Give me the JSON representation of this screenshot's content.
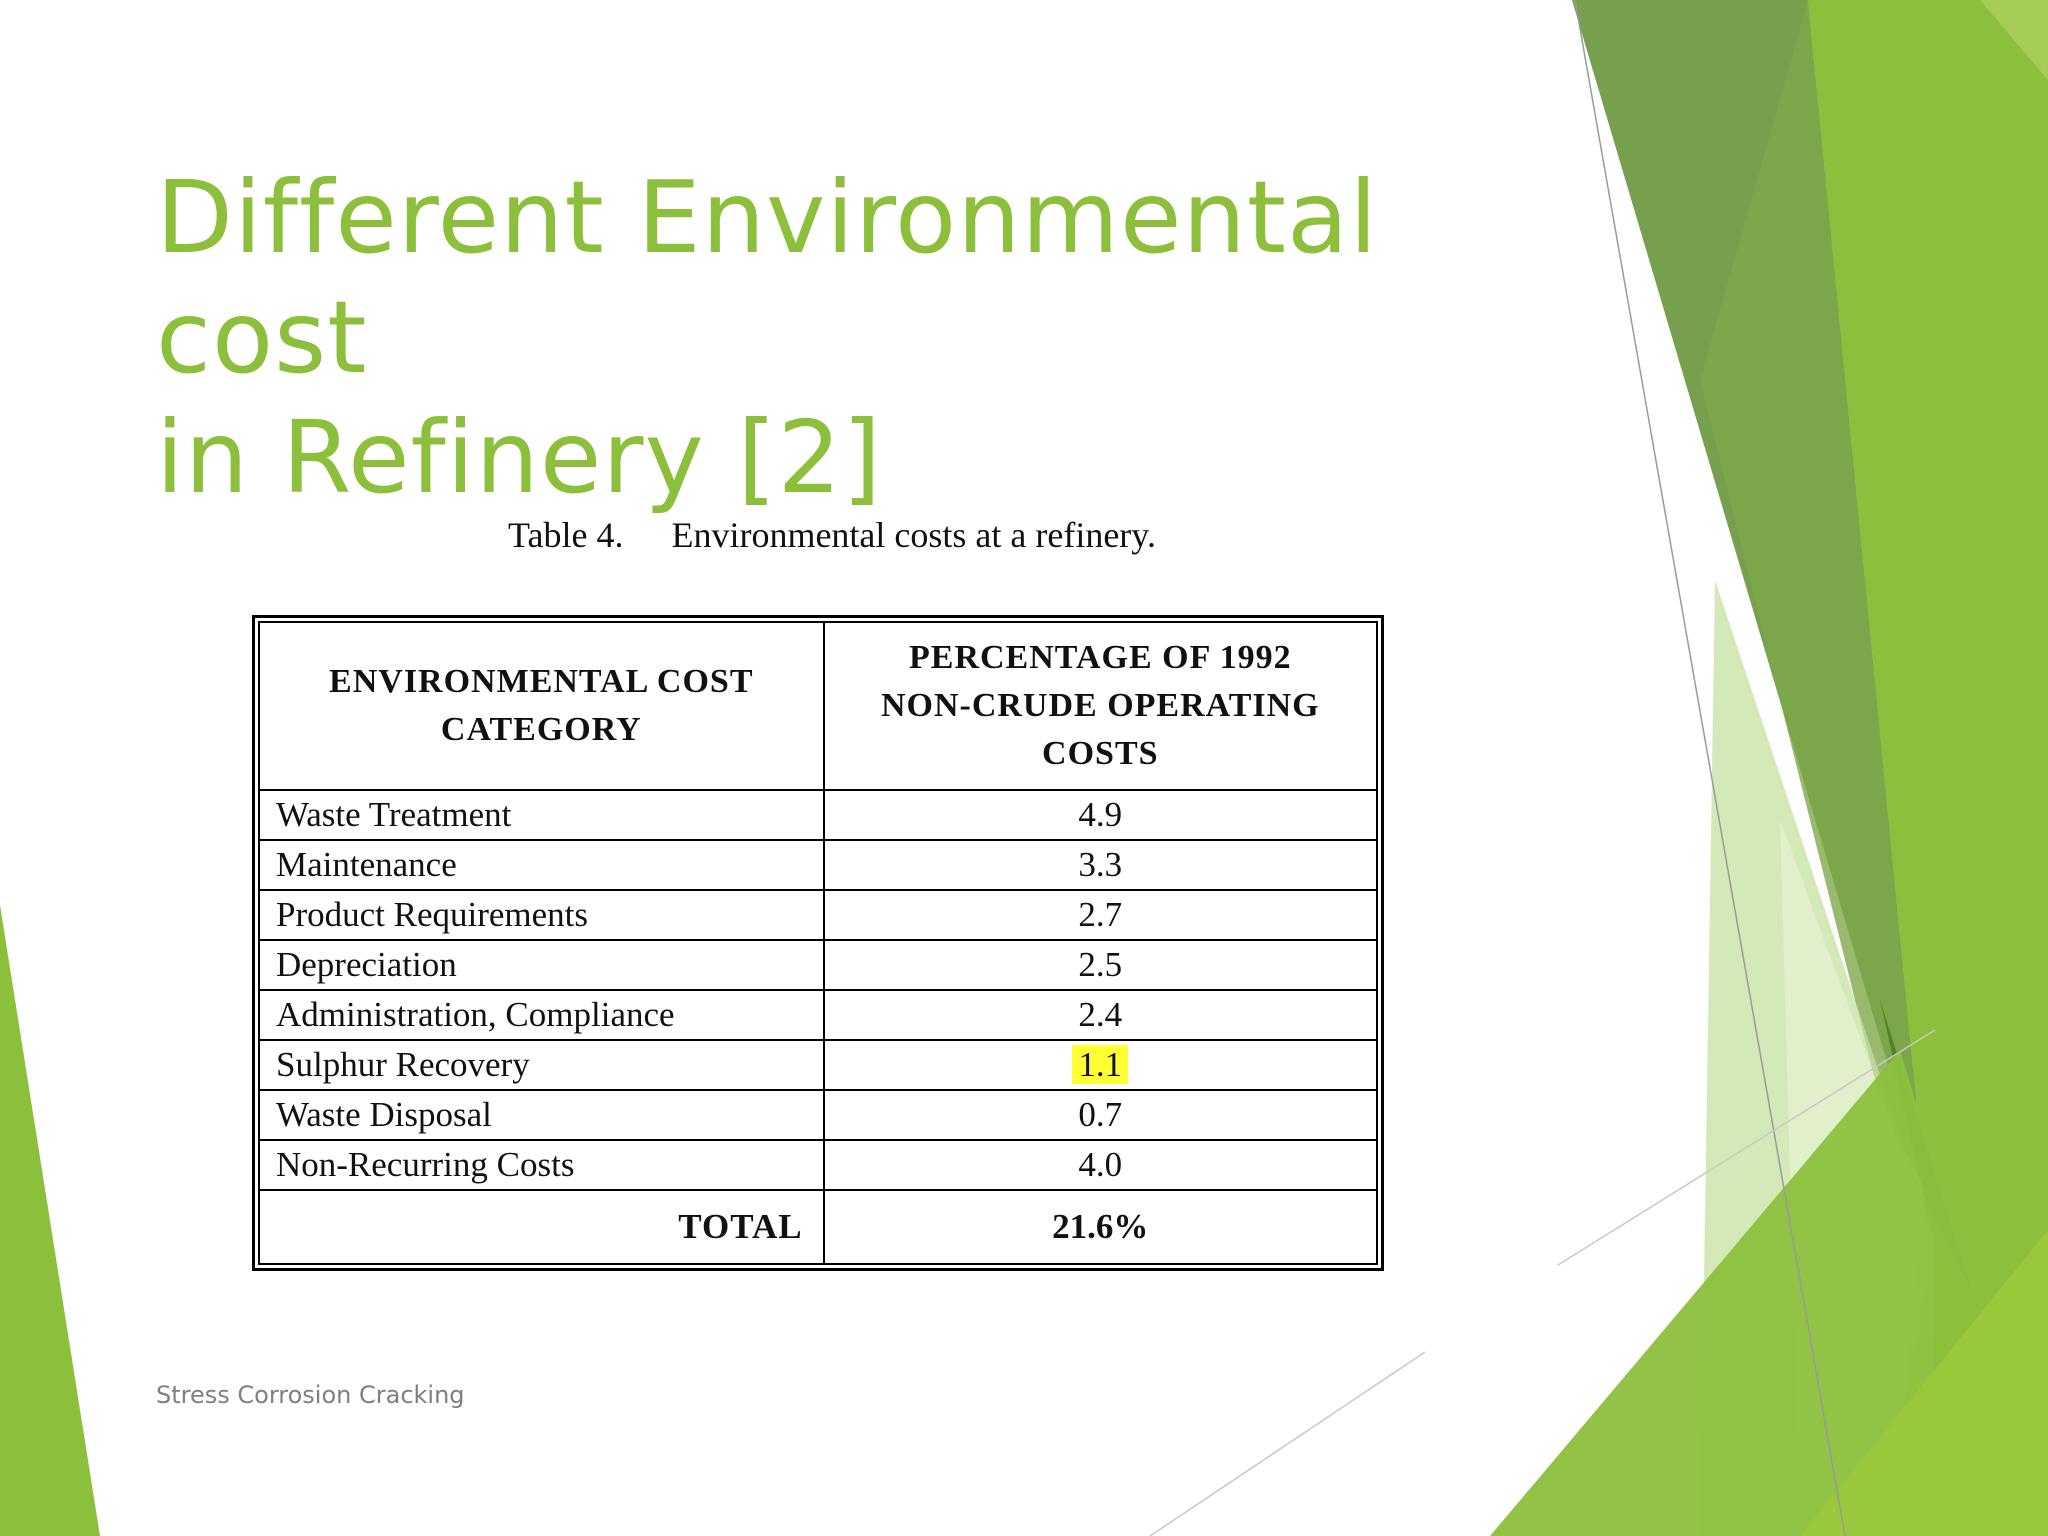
{
  "slide": {
    "title_line1": "Different Environmental cost",
    "title_line2": "in Refinery [2]",
    "footer": "Stress Corrosion Cracking"
  },
  "table": {
    "caption_number": "Table 4.",
    "caption_text": "Environmental costs at a refinery.",
    "header_col1": [
      "ENVIRONMENTAL COST",
      "CATEGORY"
    ],
    "header_col2": [
      "PERCENTAGE OF 1992",
      "NON-CRUDE OPERATING",
      "COSTS"
    ],
    "rows": [
      {
        "category": "Waste Treatment",
        "value": "4.9"
      },
      {
        "category": "Maintenance",
        "value": "3.3"
      },
      {
        "category": "Product Requirements",
        "value": "2.7"
      },
      {
        "category": "Depreciation",
        "value": "2.5"
      },
      {
        "category": "Administration, Compliance",
        "value": "2.4"
      },
      {
        "category": "Sulphur Recovery",
        "value": "1.1",
        "highlighted": true
      },
      {
        "category": "Waste Disposal",
        "value": "0.7"
      },
      {
        "category": "Non-Recurring Costs",
        "value": "4.0"
      }
    ],
    "total_label": "TOTAL",
    "total_value": "21.6%"
  },
  "colors": {
    "title": "#8cc03c",
    "accent_light": "#d6e8a8",
    "accent_mid": "#8cc03c",
    "accent_dark": "#5e8a2a",
    "highlight": "#ffff33",
    "footer": "#7f7f7f"
  }
}
